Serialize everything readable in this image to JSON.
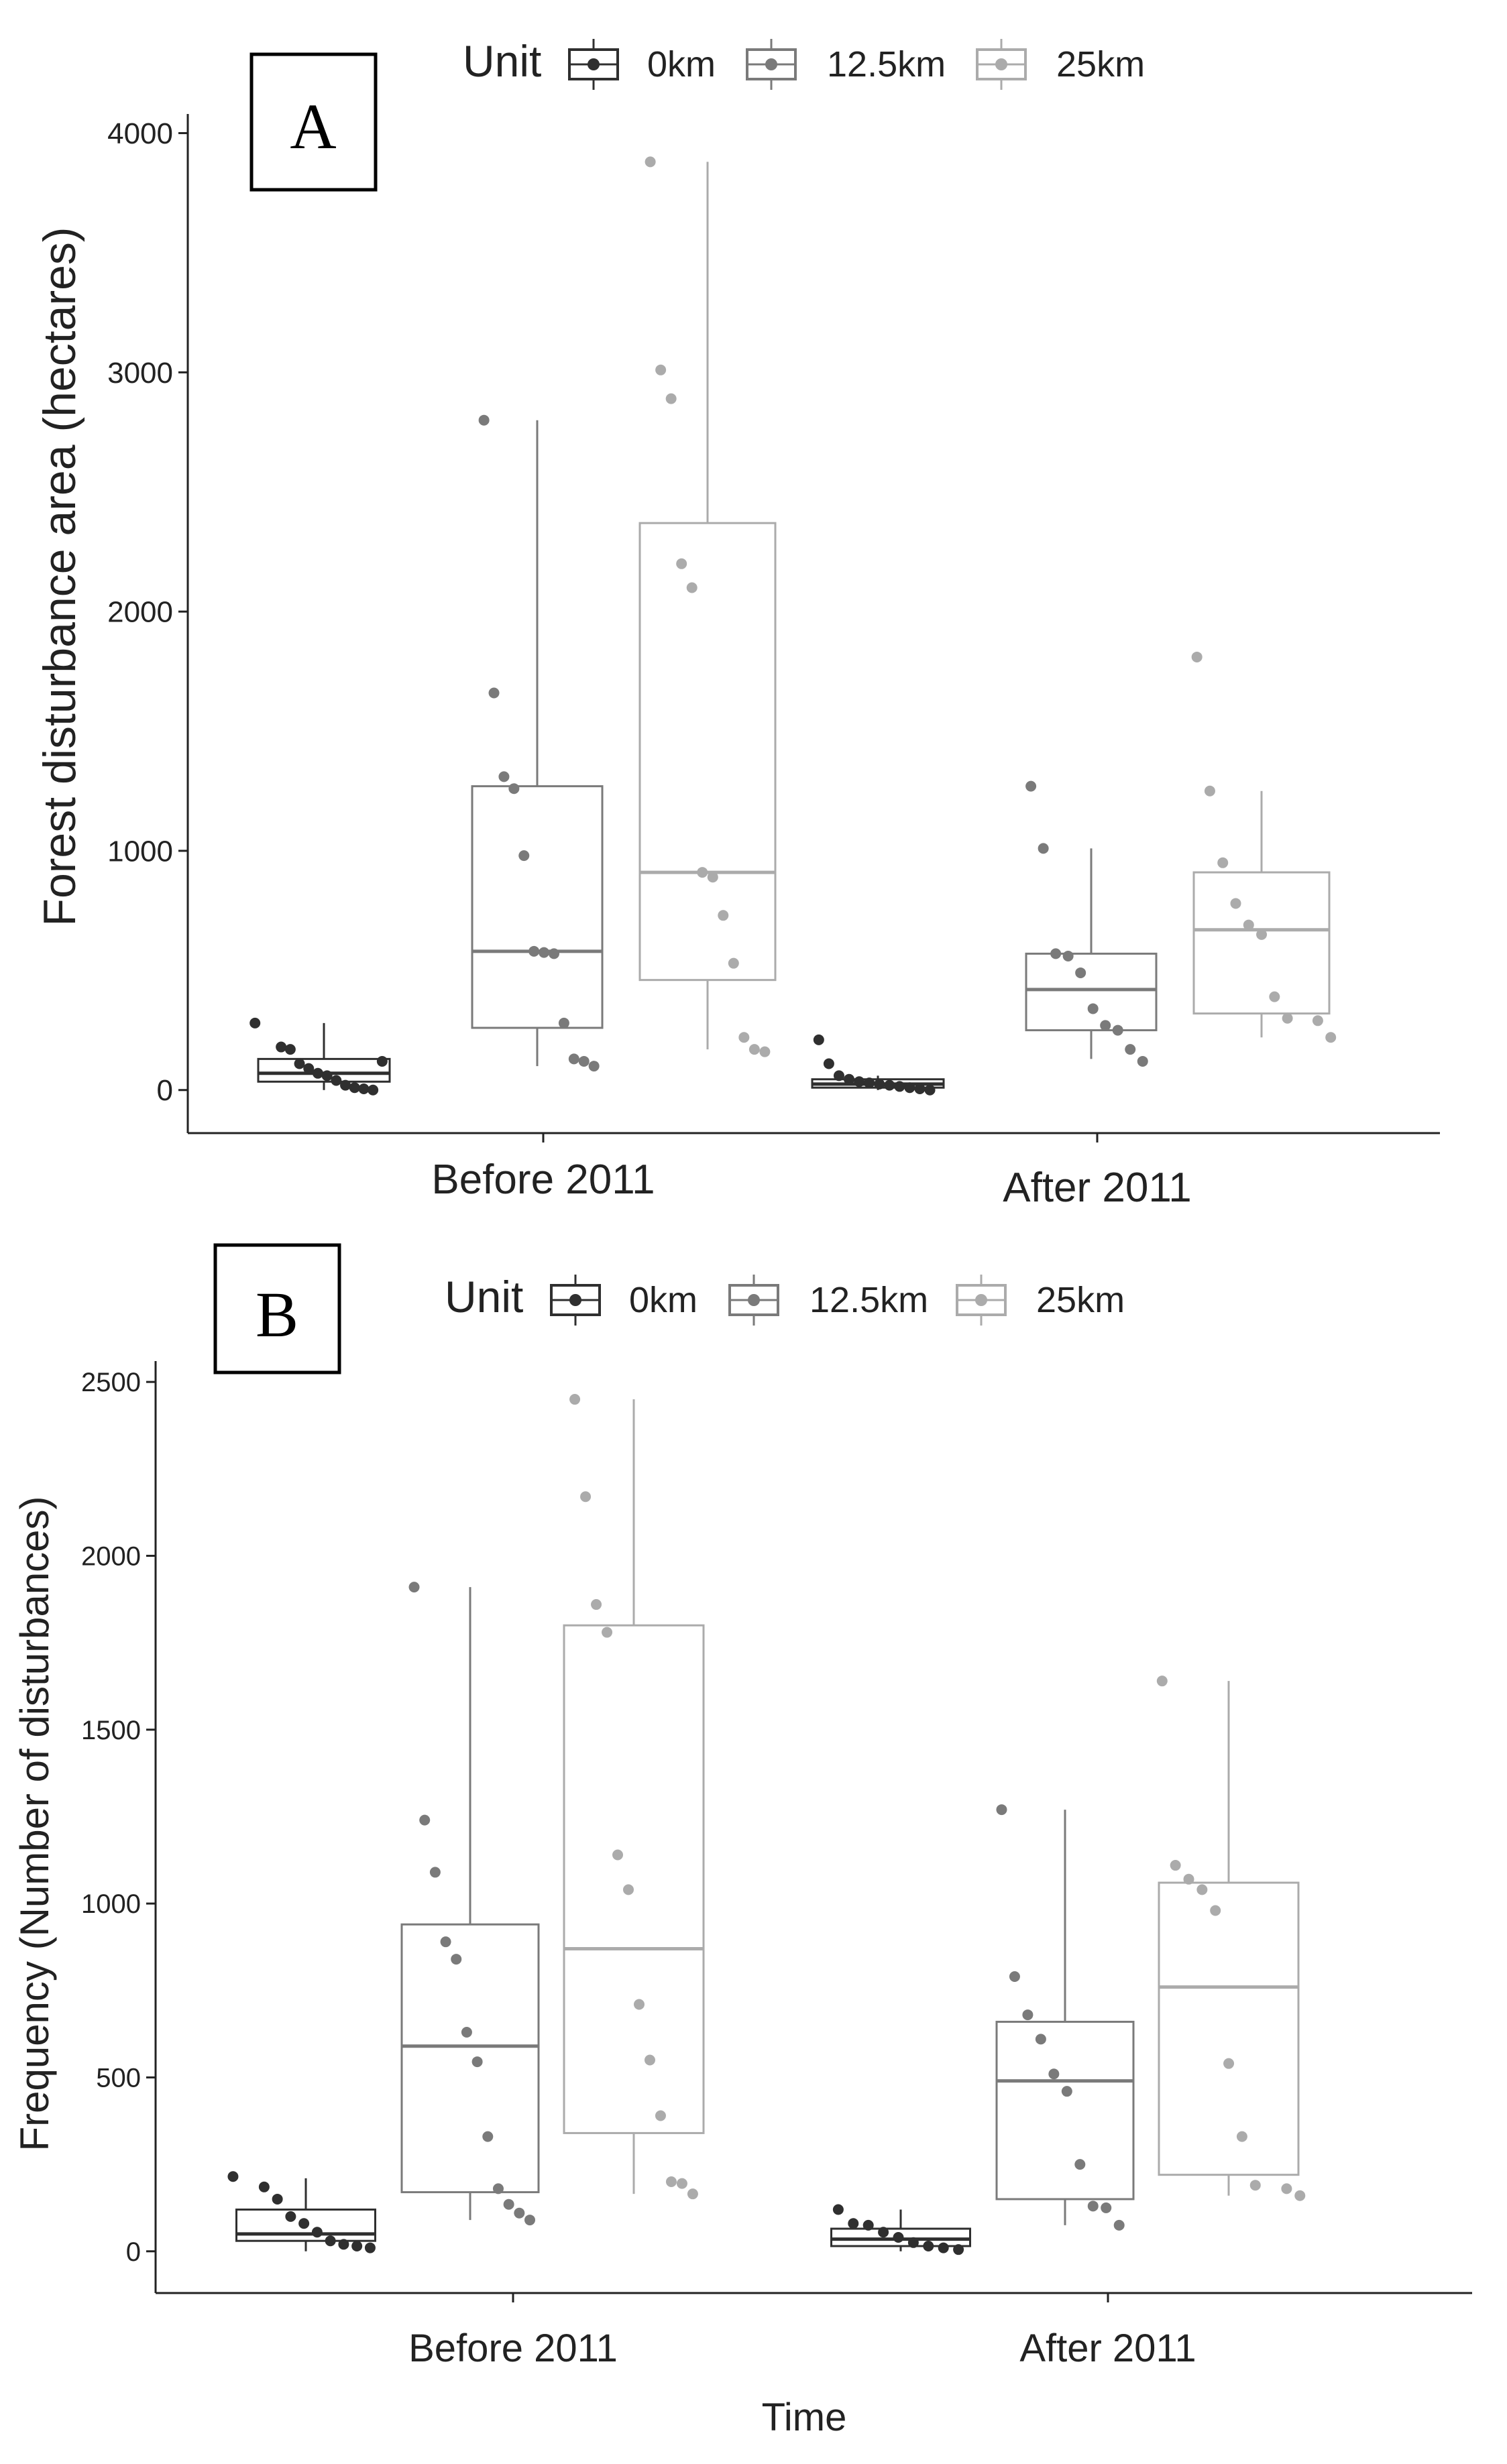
{
  "colors": {
    "unit_0km": "#2f2f2f",
    "unit_12_5km": "#7a7a7a",
    "unit_25km": "#ababab",
    "axis": "#222222",
    "text": "#222222"
  },
  "chart_data": [
    {
      "type": "box",
      "panel_label": "A",
      "legend_title": "Unit",
      "legend": [
        "0km",
        "12.5km",
        "25km"
      ],
      "legend_position": "top",
      "ylabel": "Forest disturbance area (hectares)",
      "xlabel": "",
      "ylim": [
        -180,
        4080
      ],
      "yticks": [
        0,
        1000,
        2000,
        3000,
        4000
      ],
      "categories": [
        "Before 2011",
        "After 2011"
      ],
      "series": [
        {
          "name": "0km",
          "boxes": [
            {
              "q1": 35,
              "median": 70,
              "q3": 130,
              "whisker_low": 0,
              "whisker_high": 280
            },
            {
              "q1": 10,
              "median": 25,
              "q3": 45,
              "whisker_low": 0,
              "whisker_high": 60
            }
          ],
          "points": [
            [
              280,
              180,
              170,
              110,
              90,
              70,
              60,
              40,
              20,
              10,
              5,
              0,
              120
            ],
            [
              210,
              110,
              60,
              45,
              35,
              30,
              25,
              20,
              15,
              10,
              5,
              0
            ]
          ]
        },
        {
          "name": "12.5km",
          "boxes": [
            {
              "q1": 260,
              "median": 580,
              "q3": 1270,
              "whisker_low": 100,
              "whisker_high": 2800
            },
            {
              "q1": 250,
              "median": 420,
              "q3": 570,
              "whisker_low": 130,
              "whisker_high": 1010
            }
          ],
          "points": [
            [
              2800,
              1660,
              1310,
              1260,
              980,
              580,
              575,
              570,
              280,
              130,
              120,
              100
            ],
            [
              1270,
              1010,
              570,
              560,
              490,
              340,
              270,
              250,
              170,
              120
            ]
          ]
        },
        {
          "name": "25km",
          "boxes": [
            {
              "q1": 460,
              "median": 910,
              "q3": 2370,
              "whisker_low": 170,
              "whisker_high": 3880
            },
            {
              "q1": 320,
              "median": 670,
              "q3": 910,
              "whisker_low": 220,
              "whisker_high": 1250
            }
          ],
          "points": [
            [
              3880,
              3010,
              2890,
              2200,
              2100,
              910,
              890,
              730,
              530,
              220,
              170,
              160
            ],
            [
              1810,
              1250,
              950,
              780,
              690,
              650,
              390,
              300,
              290,
              220
            ]
          ]
        }
      ]
    },
    {
      "type": "box",
      "panel_label": "B",
      "legend_title": "Unit",
      "legend": [
        "0km",
        "12.5km",
        "25km"
      ],
      "legend_position": "top",
      "ylabel": "Frequency (Number of disturbances)",
      "xlabel": "Time",
      "ylim": [
        -120,
        2560
      ],
      "yticks": [
        0,
        500,
        1000,
        1500,
        2000,
        2500
      ],
      "categories": [
        "Before 2011",
        "After 2011"
      ],
      "series": [
        {
          "name": "0km",
          "boxes": [
            {
              "q1": 30,
              "median": 50,
              "q3": 120,
              "whisker_low": 0,
              "whisker_high": 210
            },
            {
              "q1": 15,
              "median": 35,
              "q3": 65,
              "whisker_low": 0,
              "whisker_high": 120
            }
          ],
          "points": [
            [
              215,
              185,
              150,
              100,
              80,
              55,
              30,
              20,
              15,
              10
            ],
            [
              120,
              80,
              75,
              55,
              40,
              25,
              15,
              10,
              5
            ]
          ]
        },
        {
          "name": "12.5km",
          "boxes": [
            {
              "q1": 170,
              "median": 590,
              "q3": 940,
              "whisker_low": 90,
              "whisker_high": 1910
            },
            {
              "q1": 150,
              "median": 490,
              "q3": 660,
              "whisker_low": 75,
              "whisker_high": 1270
            }
          ],
          "points": [
            [
              1910,
              1240,
              1090,
              890,
              840,
              630,
              545,
              330,
              180,
              135,
              110,
              90
            ],
            [
              1270,
              790,
              680,
              610,
              510,
              460,
              250,
              130,
              125,
              75
            ]
          ]
        },
        {
          "name": "25km",
          "boxes": [
            {
              "q1": 340,
              "median": 870,
              "q3": 1800,
              "whisker_low": 165,
              "whisker_high": 2450
            },
            {
              "q1": 220,
              "median": 760,
              "q3": 1060,
              "whisker_low": 160,
              "whisker_high": 1640
            }
          ],
          "points": [
            [
              2450,
              2170,
              1860,
              1780,
              1140,
              1040,
              710,
              550,
              390,
              200,
              195,
              165
            ],
            [
              1640,
              1110,
              1070,
              1040,
              980,
              540,
              330,
              190,
              180,
              160
            ]
          ]
        }
      ]
    }
  ]
}
